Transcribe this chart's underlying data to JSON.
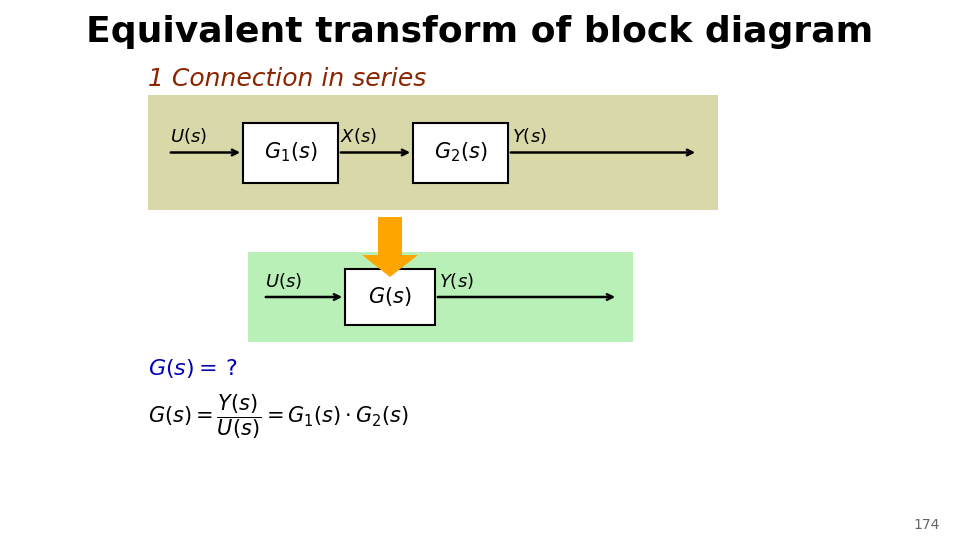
{
  "title": "Equivalent transform of block diagram",
  "subtitle": "1 Connection in series",
  "title_color": "#000000",
  "subtitle_color": "#8B2500",
  "bg_color": "#ffffff",
  "top_box_bg": "#d8d8a8",
  "bottom_box_bg": "#b8f0b8",
  "block_bg": "#ffffff",
  "block_edge": "#000000",
  "arrow_color": "#000000",
  "transform_arrow_color": "#FFA500",
  "label_color": "#000000",
  "gs_question_color": "#0000bb",
  "formula_color": "#000000",
  "page_num": "174",
  "title_fontsize": 26,
  "subtitle_fontsize": 18,
  "label_fontsize": 13,
  "block_fontsize": 15,
  "formula_fontsize": 15
}
